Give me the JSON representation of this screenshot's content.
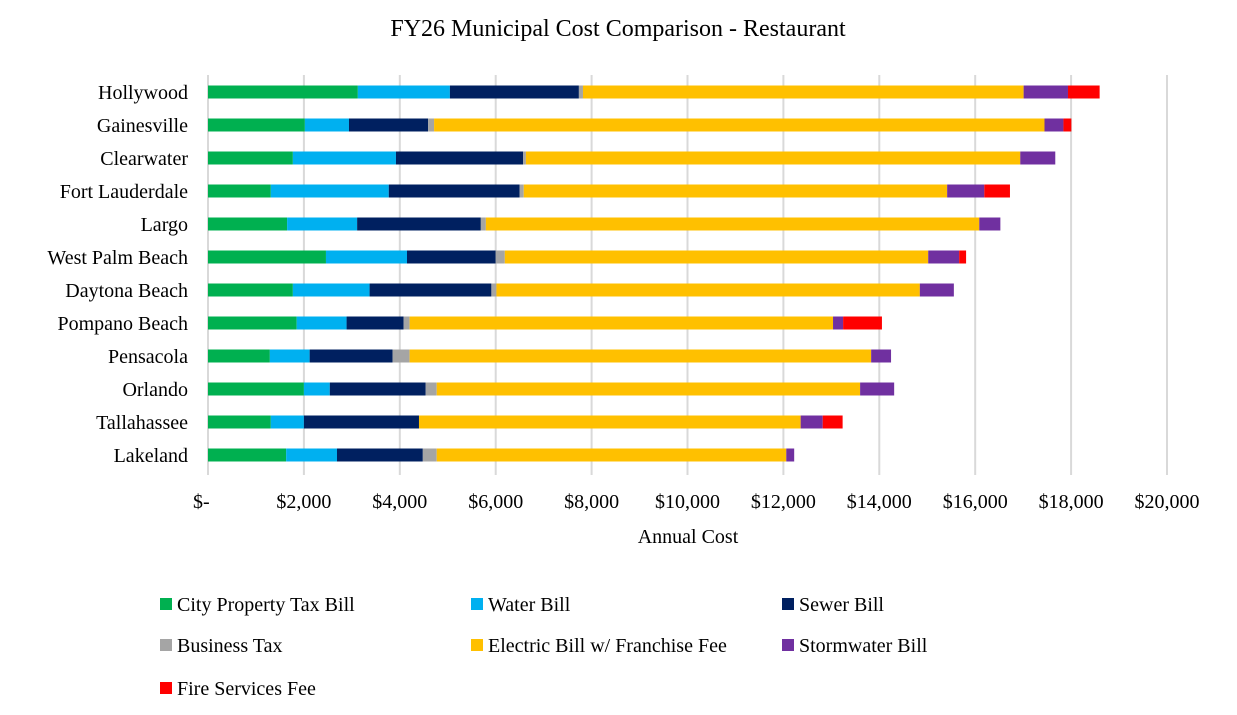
{
  "chart_data": {
    "type": "bar",
    "orientation": "horizontal",
    "stacked": true,
    "title": "FY26 Municipal Cost Comparison - Restaurant",
    "xlabel": "Annual Cost",
    "ylabel": "",
    "xlim": [
      0,
      20000
    ],
    "x_ticks": [
      0,
      2000,
      4000,
      6000,
      8000,
      10000,
      12000,
      14000,
      16000,
      18000,
      20000
    ],
    "x_tick_labels": [
      "$-",
      "$2,000",
      "$4,000",
      "$6,000",
      "$8,000",
      "$10,000",
      "$12,000",
      "$14,000",
      "$16,000",
      "$18,000",
      "$20,000"
    ],
    "grid": "vertical",
    "legend": "bottom",
    "categories": [
      "Hollywood",
      "Gainesville",
      "Clearwater",
      "Fort Lauderdale",
      "Largo",
      "West Palm Beach",
      "Daytona Beach",
      "Pompano Beach",
      "Pensacola",
      "Orlando",
      "Tallahassee",
      "Lakeland"
    ],
    "series": [
      {
        "name": "City Property Tax Bill",
        "color": "#00B050",
        "values": [
          3125,
          2020,
          1770,
          1310,
          1650,
          2460,
          1770,
          1850,
          1290,
          2000,
          1310,
          1630
        ]
      },
      {
        "name": "Water Bill",
        "color": "#00B0F0",
        "values": [
          1920,
          920,
          2150,
          2460,
          1460,
          1690,
          1600,
          1040,
          830,
          540,
          690,
          1060
        ]
      },
      {
        "name": "Sewer Bill",
        "color": "#002060",
        "values": [
          2690,
          1650,
          2650,
          2730,
          2580,
          1850,
          2540,
          1190,
          1730,
          2000,
          2400,
          1790
        ]
      },
      {
        "name": "Business Tax",
        "color": "#A5A5A5",
        "values": [
          85,
          125,
          60,
          85,
          105,
          190,
          105,
          125,
          355,
          230,
          0,
          290
        ]
      },
      {
        "name": "Electric Bill w/ Franchise Fee",
        "color": "#FFC000",
        "values": [
          9190,
          12730,
          10310,
          8830,
          10290,
          8830,
          8830,
          8830,
          9625,
          8830,
          7960,
          7290
        ]
      },
      {
        "name": "Stormwater Bill",
        "color": "#7030A0",
        "values": [
          925,
          395,
          730,
          775,
          440,
          645,
          710,
          210,
          415,
          710,
          460,
          165
        ]
      },
      {
        "name": "Fire Services Fee",
        "color": "#FF0000",
        "values": [
          660,
          165,
          0,
          535,
          0,
          145,
          0,
          810,
          0,
          0,
          415,
          0
        ]
      }
    ]
  }
}
